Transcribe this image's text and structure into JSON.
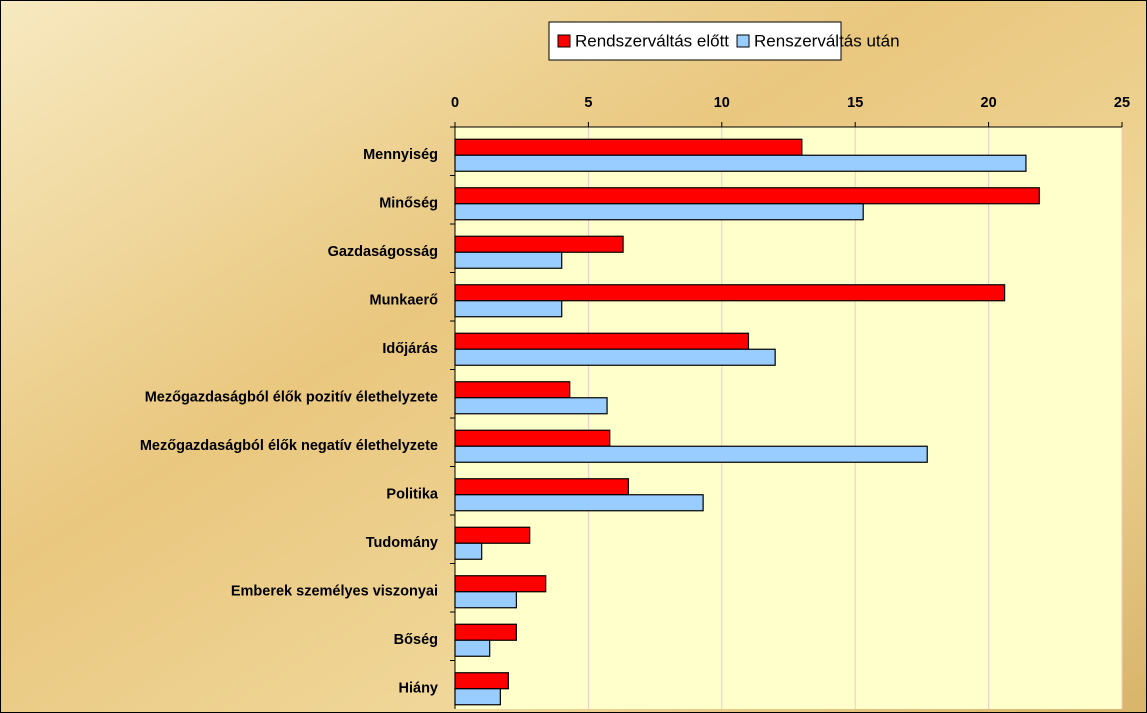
{
  "chart_data": {
    "type": "hbar",
    "categories": [
      "Mennyiség",
      "Minőség",
      "Gazdaságosság",
      "Munkaerő",
      "Időjárás",
      "Mezőgazdaságból élők pozitív élethelyzete",
      "Mezőgazdaságból élők negatív élethelyzete",
      "Politika",
      "Tudomány",
      "Emberek személyes viszonyai",
      "Bőség",
      "Hiány"
    ],
    "series": [
      {
        "name": "Rendszerváltás előtt",
        "color": "#ff0000",
        "values": [
          13,
          21.9,
          6.3,
          20.6,
          11,
          4.3,
          5.8,
          6.5,
          2.8,
          3.4,
          2.3,
          2.0
        ]
      },
      {
        "name": "Renszerváltás után",
        "color": "#99ccff",
        "values": [
          21.4,
          15.3,
          4.0,
          4.0,
          12,
          5.7,
          17.7,
          9.3,
          1.0,
          2.3,
          1.3,
          1.7
        ]
      }
    ],
    "xlim": [
      0,
      25
    ],
    "xticks": [
      0,
      5,
      10,
      15,
      20,
      25
    ],
    "grid": true,
    "legend": "top"
  }
}
